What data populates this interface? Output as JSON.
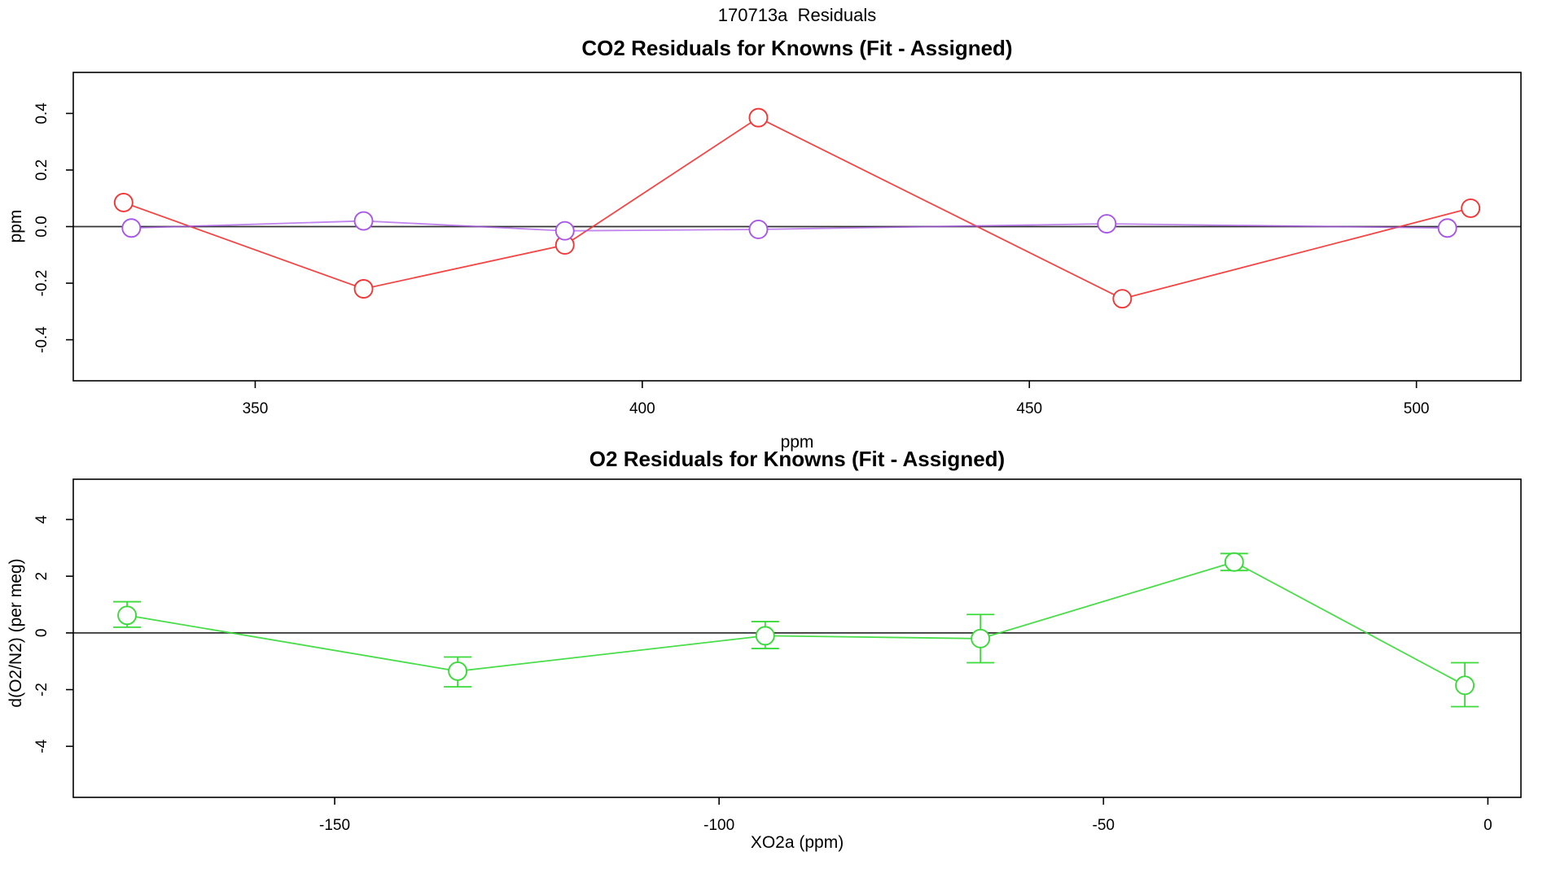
{
  "page": {
    "title": "170713a  Residuals",
    "background": "#ffffff"
  },
  "colors": {
    "red": "#f23535",
    "purple": "#a855e8",
    "green": "#3ada3a",
    "axis": "#000000",
    "zero_line": "#333333"
  },
  "chart_data": [
    {
      "type": "line",
      "title": "CO2 Residuals for Knowns (Fit - Assigned)",
      "xlabel": "ppm",
      "ylabel": "ppm",
      "xlim": [
        326.5,
        513.5
      ],
      "ylim": [
        -0.545,
        0.545
      ],
      "x_ticks": [
        350,
        400,
        450,
        500
      ],
      "x_tick_labels": [
        "350",
        "400",
        "450",
        "500"
      ],
      "y_ticks": [
        -0.4,
        -0.2,
        0.0,
        0.2,
        0.4
      ],
      "y_tick_labels": [
        "-0.4",
        "-0.2",
        "0.0",
        "0.2",
        "0.4"
      ],
      "zero_line": true,
      "grid": false,
      "legend": "none",
      "marker": "open-circle",
      "series": [
        {
          "name": "red",
          "color_key": "red",
          "x": [
            333,
            364,
            390,
            415,
            462,
            507
          ],
          "y": [
            0.085,
            -0.22,
            -0.065,
            0.385,
            -0.255,
            0.065
          ]
        },
        {
          "name": "purple",
          "color_key": "purple",
          "x": [
            334,
            364,
            390,
            415,
            460,
            504
          ],
          "y": [
            -0.005,
            0.02,
            -0.015,
            -0.01,
            0.01,
            -0.005
          ]
        }
      ]
    },
    {
      "type": "line",
      "title": "O2 Residuals for Knowns (Fit - Assigned)",
      "xlabel": "XO2a (ppm)",
      "ylabel": "d(O2/N2) (per meg)",
      "xlim": [
        -184,
        4.3
      ],
      "ylim": [
        -5.8,
        5.42
      ],
      "x_ticks": [
        -150,
        -100,
        -50,
        0
      ],
      "x_tick_labels": [
        "-150",
        "-100",
        "-50",
        "0"
      ],
      "y_ticks": [
        -4,
        -2,
        0,
        2,
        4
      ],
      "y_tick_labels": [
        "-4",
        "-2",
        "0",
        "2",
        "4"
      ],
      "zero_line": true,
      "grid": false,
      "legend": "none",
      "marker": "open-circle",
      "series": [
        {
          "name": "green",
          "color_key": "green",
          "x": [
            -177,
            -134,
            -94,
            -66,
            -33,
            -3
          ],
          "y": [
            0.62,
            -1.35,
            -0.1,
            -0.2,
            2.5,
            -1.85
          ],
          "y_high": [
            1.1,
            -0.85,
            0.4,
            0.65,
            2.8,
            -1.05
          ],
          "y_low": [
            0.2,
            -1.9,
            -0.55,
            -1.05,
            2.2,
            -2.6
          ]
        }
      ]
    }
  ]
}
